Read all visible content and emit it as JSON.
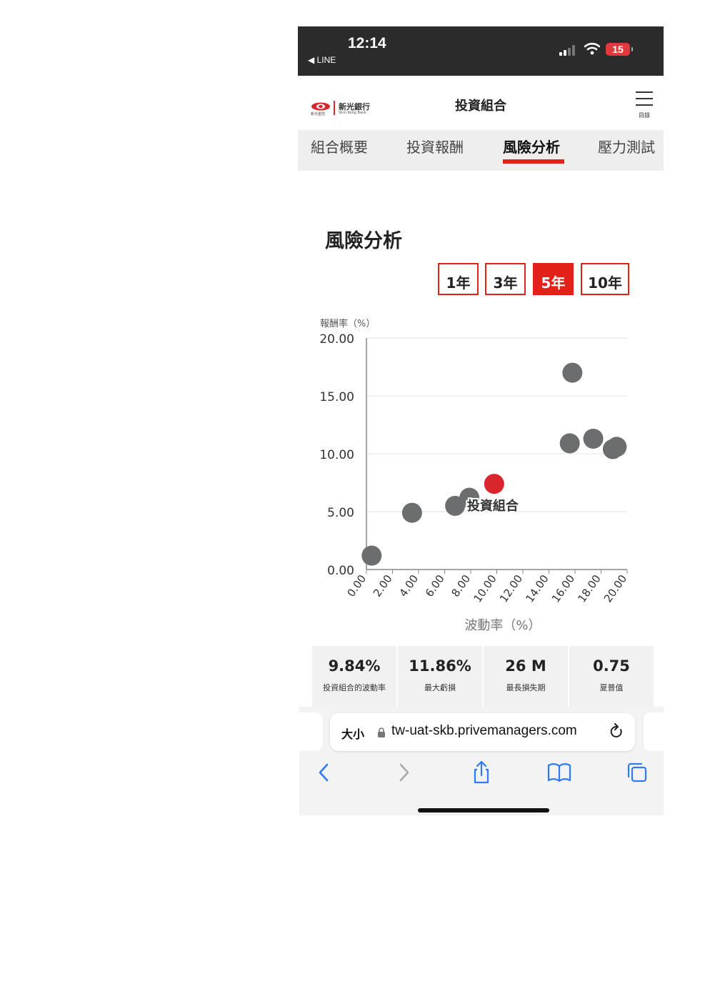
{
  "status_bar": {
    "time": "12:14",
    "back_app": "◀ LINE",
    "battery": "15",
    "icons": [
      "cellular-signal-icon",
      "wifi-icon",
      "battery-icon"
    ]
  },
  "header": {
    "brand_cn": "新光銀行",
    "brand_en": "Shin Kong Bank",
    "brand_sub": "新光金控",
    "title": "投資組合",
    "menu_label": "目錄"
  },
  "tabs": [
    {
      "label": "組合概要",
      "active": false
    },
    {
      "label": "投資報酬",
      "active": false
    },
    {
      "label": "風險分析",
      "active": true
    },
    {
      "label": "壓力測試",
      "active": false
    }
  ],
  "section": {
    "title": "風險分析",
    "periods": [
      {
        "label": "1年",
        "selected": false
      },
      {
        "label": "3年",
        "selected": false
      },
      {
        "label": "5年",
        "selected": true
      },
      {
        "label": "10年",
        "selected": false
      }
    ]
  },
  "chart_data": {
    "type": "scatter",
    "ylabel": "報酬率（%）",
    "xlabel": "波動率（%）",
    "xlim": [
      0,
      20
    ],
    "ylim": [
      0,
      20
    ],
    "x_ticks": [
      "0.00",
      "2.00",
      "4.00",
      "6.00",
      "8.00",
      "10.00",
      "12.00",
      "14.00",
      "16.00",
      "18.00",
      "20.00"
    ],
    "y_ticks": [
      "0.00",
      "5.00",
      "10.00",
      "15.00",
      "20.00"
    ],
    "grid": "horizontal",
    "colors": {
      "others": "#6b6d6e",
      "portfolio": "#d9262c"
    },
    "points": [
      {
        "x": 0.4,
        "y": 1.2
      },
      {
        "x": 3.5,
        "y": 4.9
      },
      {
        "x": 6.8,
        "y": 5.5
      },
      {
        "x": 7.9,
        "y": 6.2
      },
      {
        "x": 15.6,
        "y": 10.9
      },
      {
        "x": 15.8,
        "y": 17.0
      },
      {
        "x": 17.4,
        "y": 11.3
      },
      {
        "x": 18.9,
        "y": 10.4
      },
      {
        "x": 19.2,
        "y": 10.6
      }
    ],
    "highlight": {
      "label": "投資組合",
      "x": 9.8,
      "y": 7.4
    }
  },
  "stats": [
    {
      "value": "9.84%",
      "label": "投資組合的波動率"
    },
    {
      "value": "11.86%",
      "label": "最大虧損"
    },
    {
      "value": "26 M",
      "label": "最長損失期"
    },
    {
      "value": "0.75",
      "label": "夏普值"
    }
  ],
  "browser": {
    "text_size_label": "大小",
    "url": "tw-uat-skb.privemanagers.com",
    "toolbar_icons": [
      "back-icon",
      "forward-icon",
      "share-icon",
      "bookmarks-icon",
      "tabs-icon"
    ]
  }
}
